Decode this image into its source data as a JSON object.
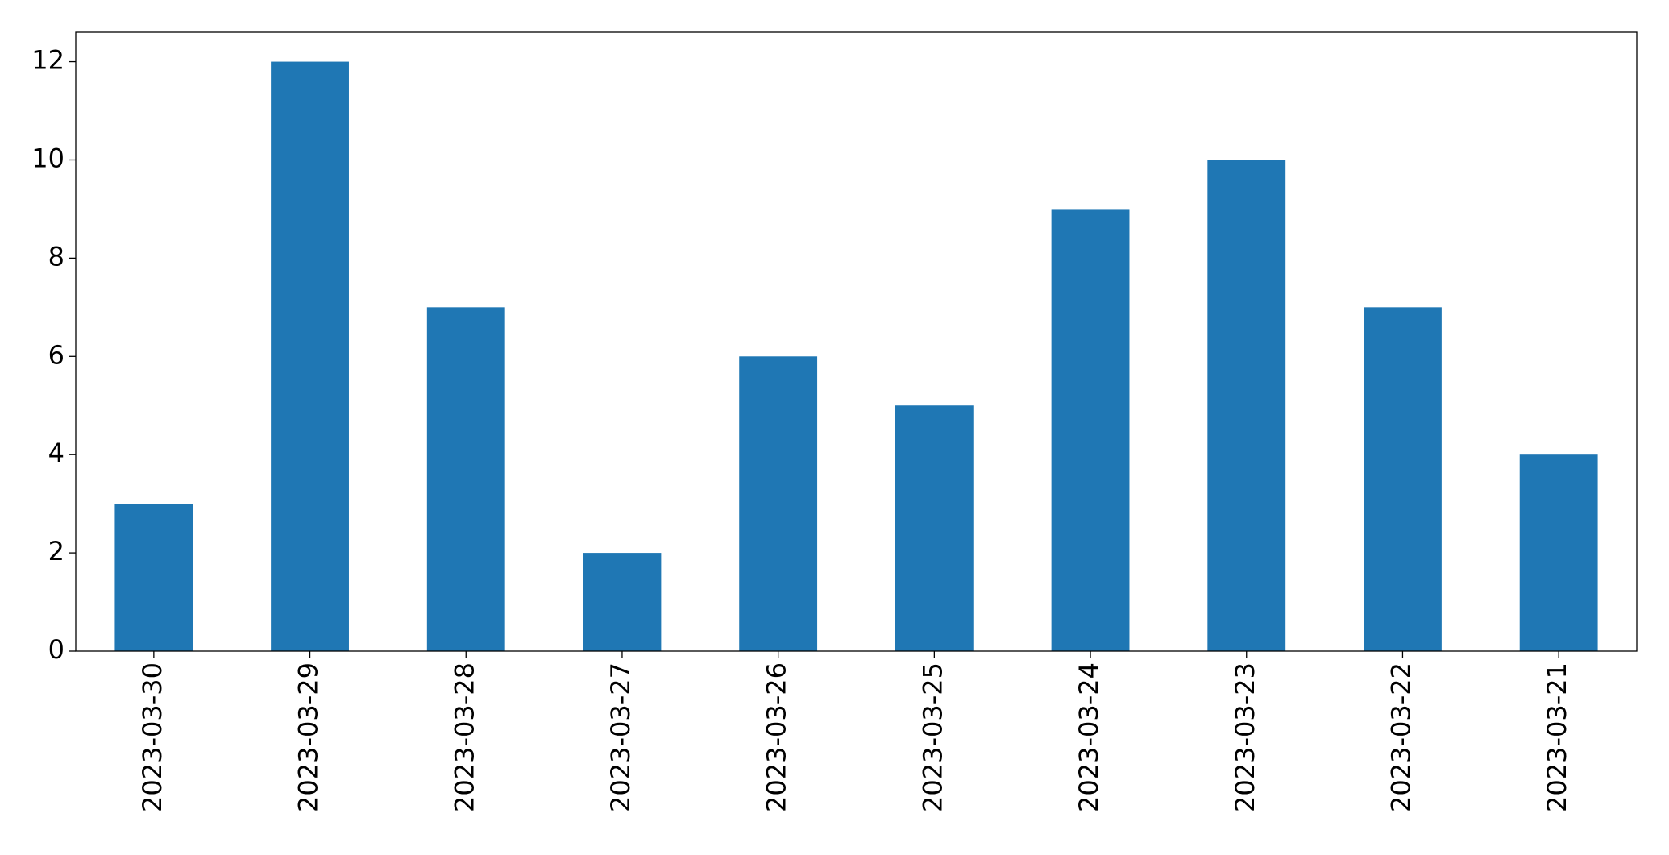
{
  "chart_data": {
    "type": "bar",
    "categories": [
      "2023-03-30",
      "2023-03-29",
      "2023-03-28",
      "2023-03-27",
      "2023-03-26",
      "2023-03-25",
      "2023-03-24",
      "2023-03-23",
      "2023-03-22",
      "2023-03-21"
    ],
    "values": [
      3,
      12,
      7,
      2,
      6,
      5,
      9,
      10,
      7,
      4
    ],
    "color": "#1f77b4",
    "ylim": [
      0,
      12.6
    ],
    "yticks": [
      0,
      2,
      4,
      6,
      8,
      10,
      12
    ],
    "grid": false
  }
}
